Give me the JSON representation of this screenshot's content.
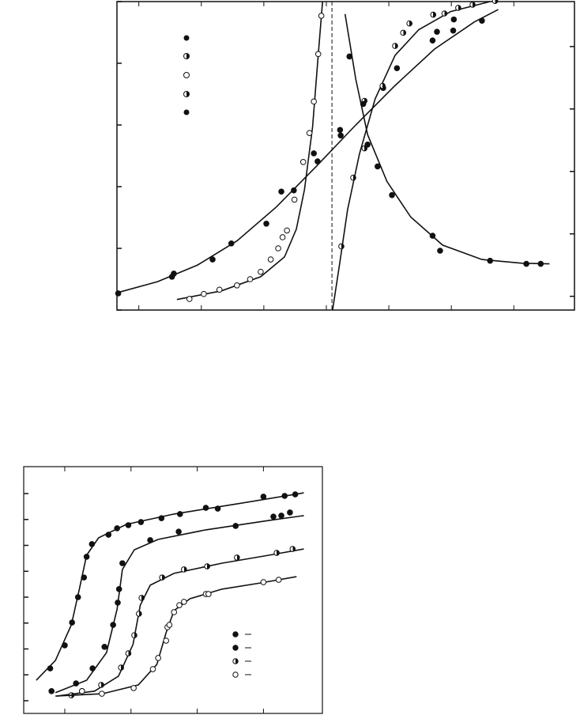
{
  "chart_data": [
    {
      "type": "line",
      "xlim": [
        0.65,
        7.97
      ],
      "xticks": [
        1,
        2,
        3,
        4,
        5,
        6,
        7
      ],
      "ylim": [
        0,
        5
      ],
      "yticks": [
        0,
        1,
        2,
        3,
        4,
        5
      ],
      "y2lim": [
        -0.22,
        4.72
      ],
      "y2ticks": [
        0,
        1,
        2,
        3,
        4
      ],
      "vline": 4.09,
      "series": [
        {
          "color": "#111",
          "marker": "filled",
          "x": [
            0.67,
            1.53,
            1.56,
            2.18,
            2.48,
            3.04,
            3.28,
            3.48,
            3.8,
            3.86,
            4.22,
            4.23,
            4.91,
            5.13,
            5.7,
            5.77,
            6.03,
            6.04,
            6.49
          ],
          "values": [
            0.27,
            0.54,
            0.59,
            0.82,
            1.08,
            1.4,
            1.92,
            1.94,
            2.54,
            2.41,
            2.92,
            2.83,
            3.6,
            3.92,
            4.37,
            4.51,
            4.53,
            4.71,
            4.69
          ],
          "fit_x": [
            0.65,
            1.3,
            1.94,
            2.57,
            3.2,
            3.84,
            4.47,
            5.1,
            5.73,
            6.37,
            6.75
          ],
          "fit_values": [
            0.28,
            0.46,
            0.73,
            1.12,
            1.67,
            2.33,
            3.0,
            3.64,
            4.23,
            4.67,
            4.87
          ]
        },
        {
          "color": "#111",
          "marker": "open",
          "x": [
            1.81,
            2.04,
            2.29,
            2.57,
            2.78,
            2.95,
            3.11,
            3.23,
            3.3,
            3.37,
            3.49,
            3.63,
            3.73,
            3.8,
            3.87,
            3.92
          ],
          "values": [
            0.18,
            0.26,
            0.33,
            0.4,
            0.5,
            0.62,
            0.82,
            1.0,
            1.18,
            1.29,
            1.79,
            2.4,
            2.87,
            3.38,
            4.15,
            4.77
          ],
          "fit_x": [
            1.61,
            2.32,
            2.95,
            3.33,
            3.52,
            3.65,
            3.78,
            3.86,
            3.94
          ],
          "fit_values": [
            0.17,
            0.31,
            0.54,
            0.86,
            1.31,
            1.95,
            2.97,
            4.0,
            5.0
          ]
        },
        {
          "color": "#111",
          "marker": "half",
          "axis": "y2",
          "x": [
            4.24,
            4.43,
            4.61,
            4.61,
            4.9,
            5.1,
            5.23,
            5.33,
            5.71,
            5.89,
            6.11,
            6.34,
            6.7
          ],
          "values": [
            0.8,
            1.9,
            2.37,
            3.13,
            3.37,
            4.01,
            4.22,
            4.37,
            4.51,
            4.53,
            4.62,
            4.67,
            4.73
          ],
          "fit_x": [
            4.1,
            4.22,
            4.34,
            4.53,
            4.78,
            5.1,
            5.48,
            5.99,
            6.62
          ],
          "fit_values": [
            -0.22,
            0.57,
            1.39,
            2.28,
            3.16,
            3.86,
            4.27,
            4.56,
            4.72
          ]
        },
        {
          "color": "#111",
          "marker": "filled",
          "axis": "y2",
          "x": [
            4.37,
            4.59,
            4.66,
            4.82,
            5.05,
            5.7,
            5.82,
            6.62,
            7.2,
            7.43
          ],
          "values": [
            3.84,
            3.08,
            2.43,
            2.08,
            1.62,
            0.97,
            0.73,
            0.57,
            0.52,
            0.52
          ],
          "fit_x": [
            4.3,
            4.47,
            4.66,
            4.97,
            5.35,
            5.86,
            6.49,
            7.13,
            7.57
          ],
          "fit_values": [
            4.52,
            3.48,
            2.59,
            1.84,
            1.27,
            0.82,
            0.59,
            0.53,
            0.52
          ]
        }
      ]
    },
    {
      "type": "line",
      "xlim": [
        0.38,
        4.89
      ],
      "xticks": [
        1,
        2,
        3,
        4
      ],
      "ylim": [
        -0.49,
        9.04
      ],
      "yticks": [
        0,
        1,
        2,
        3,
        4,
        5,
        6,
        7,
        8
      ],
      "series": [
        {
          "color": "#111",
          "marker": "filled",
          "x": [
            0.78,
            1,
            1.11,
            1.2,
            1.29,
            1.33,
            1.41,
            1.66,
            1.79,
            1.96,
            2.15,
            2.46,
            2.74,
            3.13,
            3.31,
            4.0,
            4.32,
            4.48
          ],
          "values": [
            1.25,
            2.14,
            3.02,
            4.0,
            4.76,
            5.56,
            6.05,
            6.41,
            6.66,
            6.78,
            6.9,
            7.05,
            7.21,
            7.45,
            7.42,
            7.88,
            7.91,
            7.97
          ],
          "fit_x": [
            0.57,
            0.86,
            1.1,
            1.22,
            1.33,
            1.51,
            1.93,
            2.65,
            3.6,
            4.61
          ],
          "fit_values": [
            0.79,
            1.56,
            2.93,
            4.31,
            5.62,
            6.29,
            6.81,
            7.21,
            7.6,
            8.03
          ]
        },
        {
          "color": "#111",
          "marker": "filled",
          "x": [
            0.8,
            1.17,
            1.42,
            1.6,
            1.73,
            1.8,
            1.82,
            1.87,
            2.29,
            2.72,
            3.58,
            4.15,
            4.27,
            4.4
          ],
          "values": [
            0.37,
            0.67,
            1.25,
            2.08,
            2.93,
            3.79,
            4.31,
            5.31,
            6.2,
            6.53,
            6.75,
            7.11,
            7.15,
            7.27
          ],
          "fit_x": [
            0.86,
            1.33,
            1.63,
            1.79,
            1.87,
            2.05,
            2.41,
            3.13,
            4.08,
            4.61
          ],
          "fit_values": [
            0.31,
            0.79,
            1.86,
            3.54,
            5.07,
            5.83,
            6.23,
            6.6,
            6.96,
            7.15
          ]
        },
        {
          "color": "#111",
          "marker": "half",
          "x": [
            1.1,
            1.26,
            1.55,
            1.85,
            1.96,
            2.05,
            2.12,
            2.16,
            2.47,
            2.8,
            3.15,
            3.6,
            4.2,
            4.44
          ],
          "values": [
            0.21,
            0.37,
            0.61,
            1.28,
            1.83,
            2.53,
            3.36,
            3.97,
            4.76,
            5.07,
            5.19,
            5.53,
            5.71,
            5.86
          ],
          "fit_x": [
            0.88,
            1.45,
            1.81,
            2.03,
            2.14,
            2.29,
            2.65,
            3.37,
            4.08,
            4.61
          ],
          "fit_values": [
            0.18,
            0.37,
            0.95,
            2.17,
            3.69,
            4.46,
            4.92,
            5.31,
            5.62,
            5.86
          ]
        },
        {
          "color": "#111",
          "marker": "open",
          "x": [
            1.26,
            1.56,
            2.04,
            2.33,
            2.41,
            2.53,
            2.55,
            2.58,
            2.65,
            2.73,
            2.8,
            3.13,
            3.17,
            4.0,
            4.23
          ],
          "values": [
            0.37,
            0.27,
            0.49,
            1.22,
            1.65,
            2.32,
            2.84,
            2.93,
            3.42,
            3.69,
            3.82,
            4.12,
            4.12,
            4.58,
            4.67
          ],
          "fit_x": [
            0.86,
            1.57,
            2.11,
            2.39,
            2.53,
            2.65,
            2.89,
            3.37,
            3.96,
            4.5
          ],
          "fit_values": [
            0.18,
            0.27,
            0.61,
            1.4,
            2.63,
            3.48,
            3.94,
            4.31,
            4.55,
            4.79
          ]
        }
      ]
    }
  ]
}
